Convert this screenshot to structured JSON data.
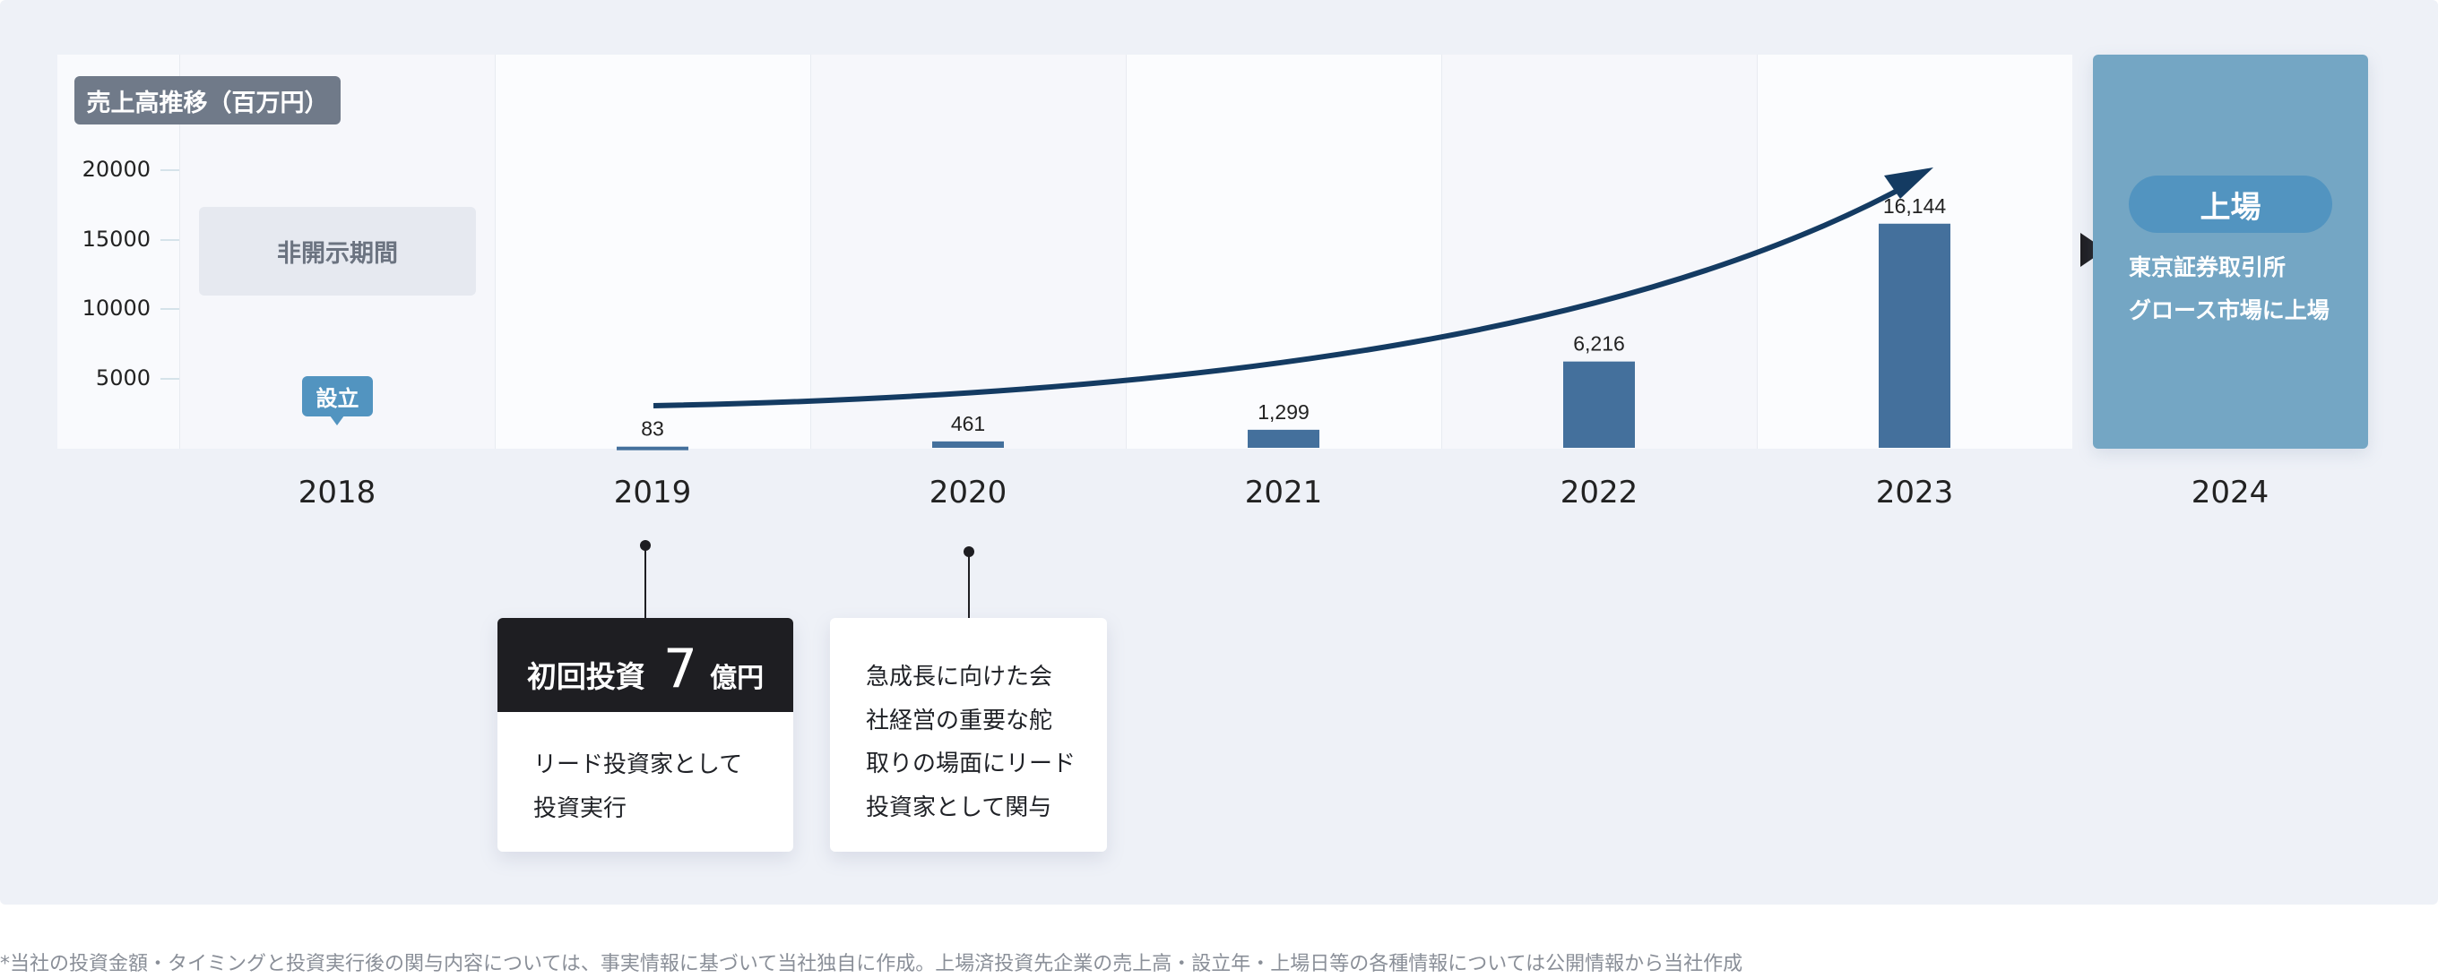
{
  "chart_data": {
    "type": "bar",
    "title": "売上高推移（百万円）",
    "categories": [
      "2018",
      "2019",
      "2020",
      "2021",
      "2022",
      "2023",
      "2024"
    ],
    "values": [
      null,
      83,
      461,
      1299,
      6216,
      16144,
      null
    ],
    "value_labels": [
      "",
      "83",
      "461",
      "1,299",
      "6,216",
      "16,144",
      ""
    ],
    "yticks": [
      "5000",
      "10000",
      "15000",
      "20000"
    ],
    "ylim": [
      0,
      20000
    ],
    "trend_arrow": true,
    "colors": {
      "bar": "#44709c",
      "arrow": "#143b62",
      "listing": "#74a6c4",
      "badge": "#5294c0"
    }
  },
  "annotations": {
    "undisclosed": "非開示期間",
    "founded": "設立",
    "listing": {
      "pill": "上場",
      "line1": "東京証券取引所",
      "line2": "グロース市場に上場"
    }
  },
  "cards": [
    {
      "head_prefix": "初回投資",
      "head_number": "7",
      "head_unit": "億円",
      "lines": [
        "リード投資家として",
        "投資実行"
      ]
    },
    {
      "lines": [
        "急成長に向けた会",
        "社経営の重要な舵",
        "取りの場面にリード",
        "投資家として関与"
      ]
    }
  ],
  "footer": "*当社の投資金額・タイミングと投資実行後の関与内容については、事実情報に基づいて当社独自に作成。上場済投資先企業の売上高・設立年・上場日等の各種情報については公開情報から当社作成"
}
